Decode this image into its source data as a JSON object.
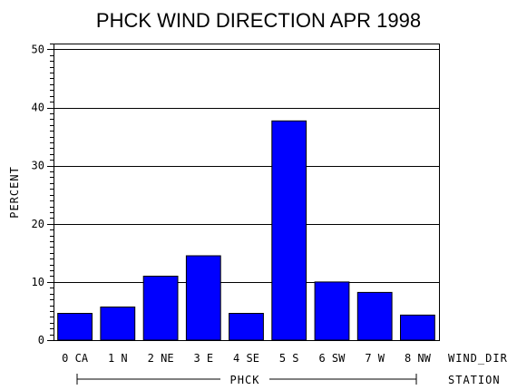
{
  "chart_data": {
    "type": "bar",
    "title": "PHCK WIND DIRECTION APR 1998",
    "ylabel": "PERCENT",
    "xlabel": "WIND_DIR",
    "group_label": "PHCK",
    "group_axis_label": "STATION",
    "categories": [
      "0 CA",
      "1 N",
      "2 NE",
      "3 E",
      "4 SE",
      "5 S",
      "6 SW",
      "7 W",
      "8 NW"
    ],
    "values": [
      4.6,
      5.7,
      11.0,
      14.5,
      4.6,
      37.7,
      10.0,
      8.2,
      4.3
    ],
    "ylim": [
      0,
      51
    ],
    "yticks": [
      0,
      10,
      20,
      30,
      40,
      50
    ],
    "grid": true,
    "bar_color": "#0000ff"
  }
}
